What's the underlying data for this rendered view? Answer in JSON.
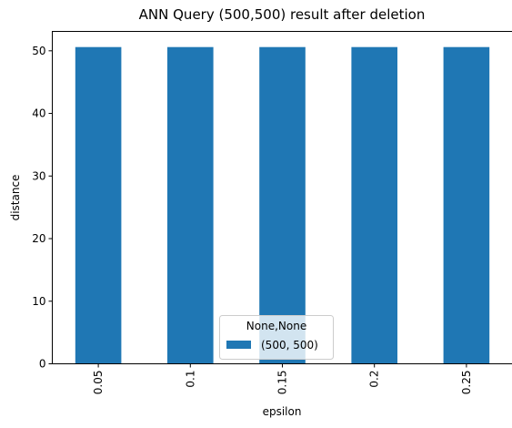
{
  "chart_data": {
    "type": "bar",
    "title": "ANN Query (500,500) result after deletion",
    "xlabel": "epsilon",
    "ylabel": "distance",
    "categories": [
      "0.05",
      "0.1",
      "0.15",
      "0.2",
      "0.25"
    ],
    "series": [
      {
        "name": "(500, 500)",
        "values": [
          50.6,
          50.6,
          50.6,
          50.6,
          50.6
        ],
        "color": "#1f77b4"
      }
    ],
    "ylim": [
      0,
      53.1
    ],
    "yticks": [
      0,
      10,
      20,
      30,
      40,
      50
    ],
    "legend": {
      "title": "None,None",
      "placement": "lower-center"
    },
    "grid": false
  }
}
